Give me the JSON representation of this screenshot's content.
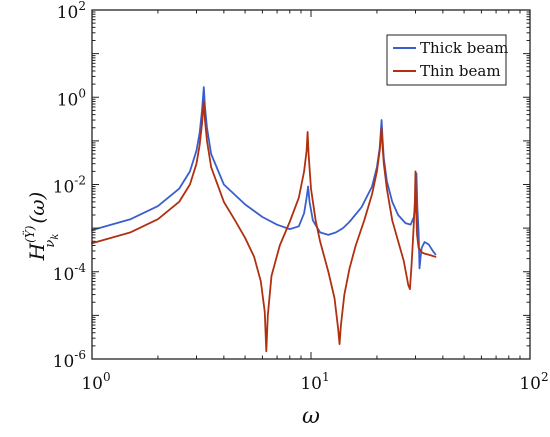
{
  "chart_data": {
    "type": "line",
    "title": "",
    "xlabel": "ω",
    "ylabel_main": "H",
    "ylabel_superscript": "(Ÿ)",
    "ylabel_subscript": "ν",
    "ylabel_subsubscript": "k",
    "ylabel_argument": "(ω)",
    "x_scale": "log",
    "y_scale": "log",
    "xlim": [
      1,
      100
    ],
    "ylim": [
      1e-06,
      100
    ],
    "x_ticks": [
      {
        "value": 1,
        "base": "10",
        "exp": "0"
      },
      {
        "value": 10,
        "base": "10",
        "exp": "1"
      },
      {
        "value": 100,
        "base": "10",
        "exp": "2"
      }
    ],
    "y_ticks": [
      {
        "value": 1e-06,
        "base": "10",
        "exp": "-6"
      },
      {
        "value": 0.0001,
        "base": "10",
        "exp": "-4"
      },
      {
        "value": 0.01,
        "base": "10",
        "exp": "-2"
      },
      {
        "value": 1,
        "base": "10",
        "exp": "0"
      },
      {
        "value": 100,
        "base": "10",
        "exp": "2"
      }
    ],
    "grid": false,
    "legend_position": "top-right",
    "series": [
      {
        "name": "Thick beam",
        "color": "#3a5fcd",
        "x": [
          1.0,
          1.5,
          2.0,
          2.5,
          2.8,
          3.0,
          3.1,
          3.18,
          3.24,
          3.28,
          3.35,
          3.5,
          4.0,
          5.0,
          6.0,
          7.0,
          8.0,
          8.8,
          9.3,
          9.55,
          9.7,
          9.85,
          10.2,
          11.0,
          12.0,
          13.0,
          14.0,
          15.0,
          17.0,
          19.0,
          20.0,
          20.6,
          21.0,
          21.2,
          21.5,
          22.2,
          23.5,
          25.0,
          27.0,
          28.5,
          29.5,
          30.0,
          30.3,
          30.6,
          31.0,
          31.3,
          31.6,
          32.0,
          33.0,
          34.5,
          36.0,
          37.0
        ],
        "y": [
          0.0009,
          0.0016,
          0.0032,
          0.008,
          0.02,
          0.06,
          0.15,
          0.5,
          1.7,
          0.6,
          0.2,
          0.05,
          0.01,
          0.0035,
          0.0018,
          0.0012,
          0.00095,
          0.0011,
          0.0022,
          0.005,
          0.009,
          0.004,
          0.0015,
          0.0008,
          0.0007,
          0.0008,
          0.001,
          0.0014,
          0.003,
          0.009,
          0.025,
          0.07,
          0.3,
          0.12,
          0.04,
          0.012,
          0.004,
          0.002,
          0.0013,
          0.0012,
          0.0018,
          0.004,
          0.018,
          0.003,
          0.0008,
          0.00012,
          0.0002,
          0.00035,
          0.00048,
          0.00042,
          0.0003,
          0.00025
        ]
      },
      {
        "name": "Thin beam",
        "color": "#b03010",
        "x": [
          1.0,
          1.5,
          2.0,
          2.5,
          2.8,
          3.0,
          3.1,
          3.18,
          3.24,
          3.28,
          3.35,
          3.5,
          4.0,
          4.5,
          5.0,
          5.5,
          5.9,
          6.15,
          6.25,
          6.35,
          6.6,
          7.2,
          8.0,
          8.8,
          9.3,
          9.55,
          9.65,
          9.75,
          10.0,
          10.5,
          11.0,
          12.0,
          12.8,
          13.3,
          13.5,
          13.7,
          14.2,
          15.0,
          16.0,
          17.5,
          19.0,
          20.0,
          20.6,
          21.0,
          21.2,
          21.5,
          22.2,
          23.5,
          25.0,
          26.5,
          27.8,
          28.3,
          28.8,
          29.3,
          29.8,
          30.0,
          30.2,
          30.5,
          31.0,
          32.0,
          33.0,
          34.0,
          35.0,
          36.0,
          37.0
        ],
        "y": [
          0.00045,
          0.0008,
          0.0016,
          0.004,
          0.01,
          0.03,
          0.08,
          0.25,
          0.8,
          0.3,
          0.1,
          0.025,
          0.004,
          0.0015,
          0.0006,
          0.00022,
          6e-05,
          1.2e-05,
          1.5e-06,
          1e-05,
          8e-05,
          0.0004,
          0.0014,
          0.005,
          0.02,
          0.06,
          0.16,
          0.05,
          0.008,
          0.0015,
          0.0005,
          0.0001,
          2.5e-05,
          5e-06,
          2.2e-06,
          6e-06,
          3e-05,
          0.00012,
          0.0004,
          0.0015,
          0.006,
          0.02,
          0.06,
          0.2,
          0.08,
          0.03,
          0.008,
          0.0015,
          0.0005,
          0.00018,
          5e-05,
          4e-05,
          0.00015,
          0.0007,
          0.004,
          0.02,
          0.003,
          0.0007,
          0.00035,
          0.00028,
          0.00026,
          0.00025,
          0.00024,
          0.00023,
          0.00022
        ]
      }
    ]
  }
}
